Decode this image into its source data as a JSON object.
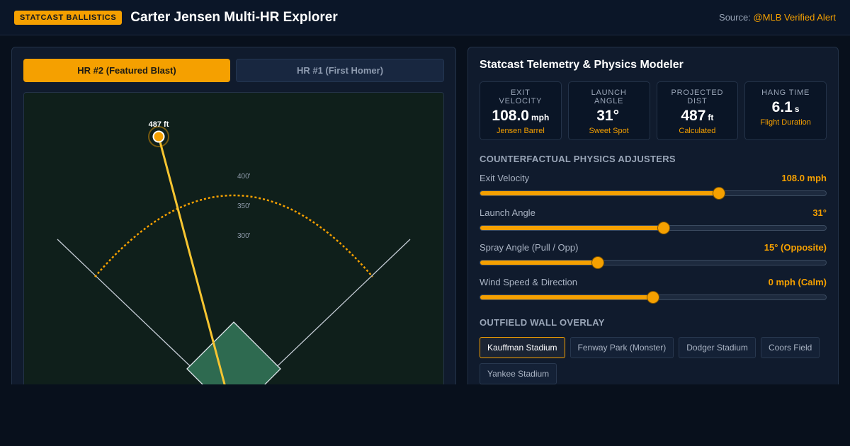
{
  "header": {
    "badge": "STATCAST BALLISTICS",
    "title": "Carter Jensen Multi-HR Explorer",
    "source_label": "Source:",
    "source_link": "@MLB Verified Alert"
  },
  "tabs": [
    {
      "label": "HR #2 (Featured Blast)",
      "active": true
    },
    {
      "label": "HR #1 (First Homer)",
      "active": false
    }
  ],
  "field": {
    "distance_label": "487 ft",
    "distance_markers": [
      "400'",
      "350'",
      "300'"
    ],
    "colors": {
      "turf": "#0f1f1b",
      "infield": "#2e6a50",
      "trajectory": "#f7c531",
      "wall": "#f5a000"
    }
  },
  "telemetry": {
    "title": "Statcast Telemetry & Physics Modeler",
    "metrics": [
      {
        "label": "EXIT VELOCITY",
        "value": "108.0",
        "unit": "mph",
        "sub": "Jensen Barrel"
      },
      {
        "label": "LAUNCH ANGLE",
        "value": "31°",
        "unit": "",
        "sub": "Sweet Spot"
      },
      {
        "label": "PROJECTED DIST",
        "value": "487",
        "unit": "ft",
        "sub": "Calculated"
      },
      {
        "label": "HANG TIME",
        "value": "6.1",
        "unit": "s",
        "sub": "Flight Duration"
      }
    ]
  },
  "adjusters": {
    "title": "COUNTERFACTUAL PHYSICS ADJUSTERS",
    "items": [
      {
        "label": "Exit Velocity",
        "value": "108.0 mph",
        "level": 0.69
      },
      {
        "label": "Launch Angle",
        "value": "31°",
        "level": 0.53
      },
      {
        "label": "Spray Angle (Pull / Opp)",
        "value": "15° (Opposite)",
        "level": 0.34
      },
      {
        "label": "Wind Speed & Direction",
        "value": "0 mph (Calm)",
        "level": 0.5
      }
    ]
  },
  "wall_overlay": {
    "title": "OUTFIELD WALL OVERLAY",
    "stadiums": [
      {
        "label": "Kauffman Stadium",
        "selected": true
      },
      {
        "label": "Fenway Park (Monster)",
        "selected": false
      },
      {
        "label": "Dodger Stadium",
        "selected": false
      },
      {
        "label": "Coors Field",
        "selected": false
      },
      {
        "label": "Yankee Stadium",
        "selected": false
      }
    ]
  }
}
